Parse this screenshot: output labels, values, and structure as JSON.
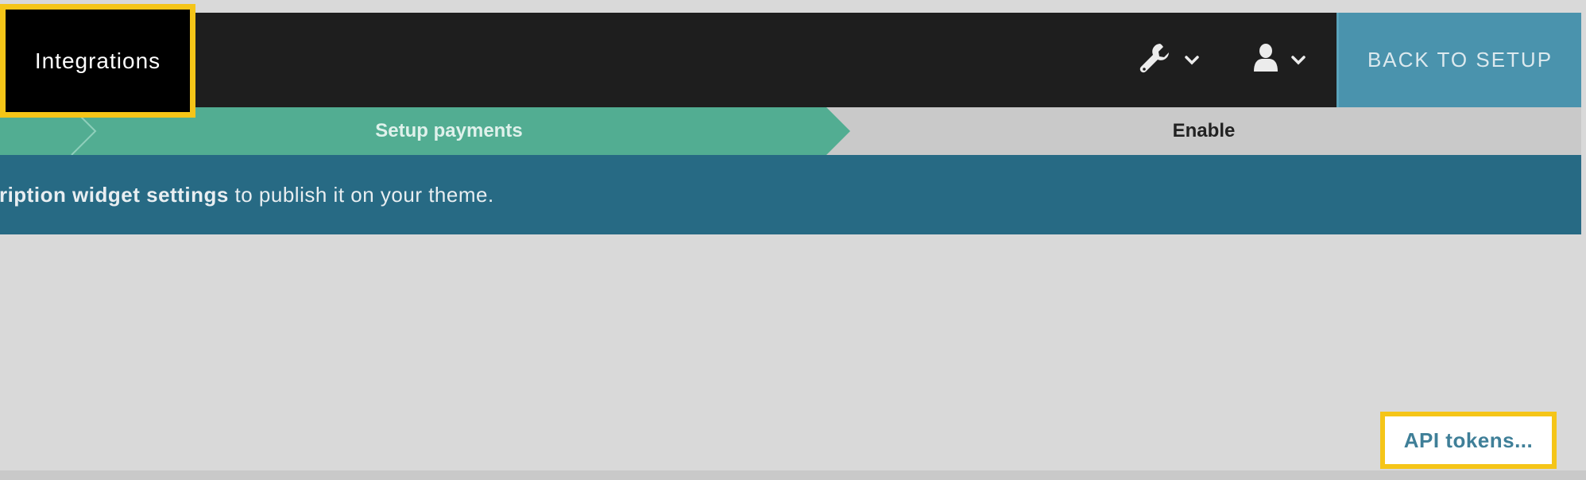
{
  "header": {
    "brand": "Integrations",
    "tools_icon": "wrench-icon",
    "user_icon": "user-icon",
    "back_button": "BACK TO SETUP"
  },
  "steps": [
    {
      "label": "",
      "state": "done"
    },
    {
      "label": "Setup payments",
      "state": "active"
    },
    {
      "label": "Enable",
      "state": "upcoming"
    }
  ],
  "banner": {
    "bold_text": "cription widget settings",
    "text": " to publish it on your theme."
  },
  "footer": {
    "api_tokens_link": "API tokens..."
  },
  "colors": {
    "header_bg": "#1e1e1e",
    "accent_blue": "#4a93ad",
    "active_step": "#52ad92",
    "banner_bg": "#276a84",
    "highlight": "#f5c518"
  }
}
